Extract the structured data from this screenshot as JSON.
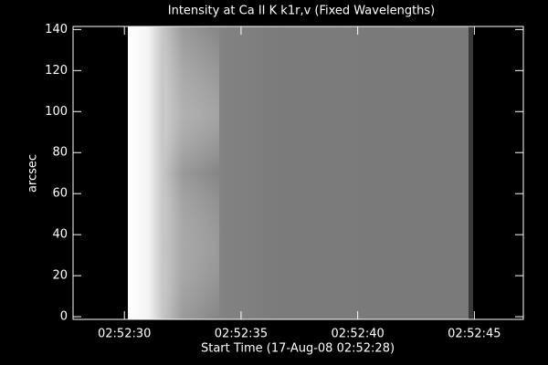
{
  "chart_data": {
    "type": "image",
    "title": "Intensity at Ca II K k1r,v (Fixed Wavelengths)",
    "xlabel": "Start Time (17-Aug-08 02:52:28)",
    "ylabel": "arcsec",
    "xlim": [
      -0.2,
      19.1
    ],
    "xticks": [
      {
        "value": 2,
        "label": "02:52:30"
      },
      {
        "value": 7,
        "label": "02:52:35"
      },
      {
        "value": 12,
        "label": "02:52:40"
      },
      {
        "value": 17,
        "label": "02:52:45"
      }
    ],
    "ylim": [
      -1.3,
      141.5
    ],
    "yticks": [
      0,
      20,
      40,
      60,
      80,
      100,
      120,
      140
    ]
  }
}
